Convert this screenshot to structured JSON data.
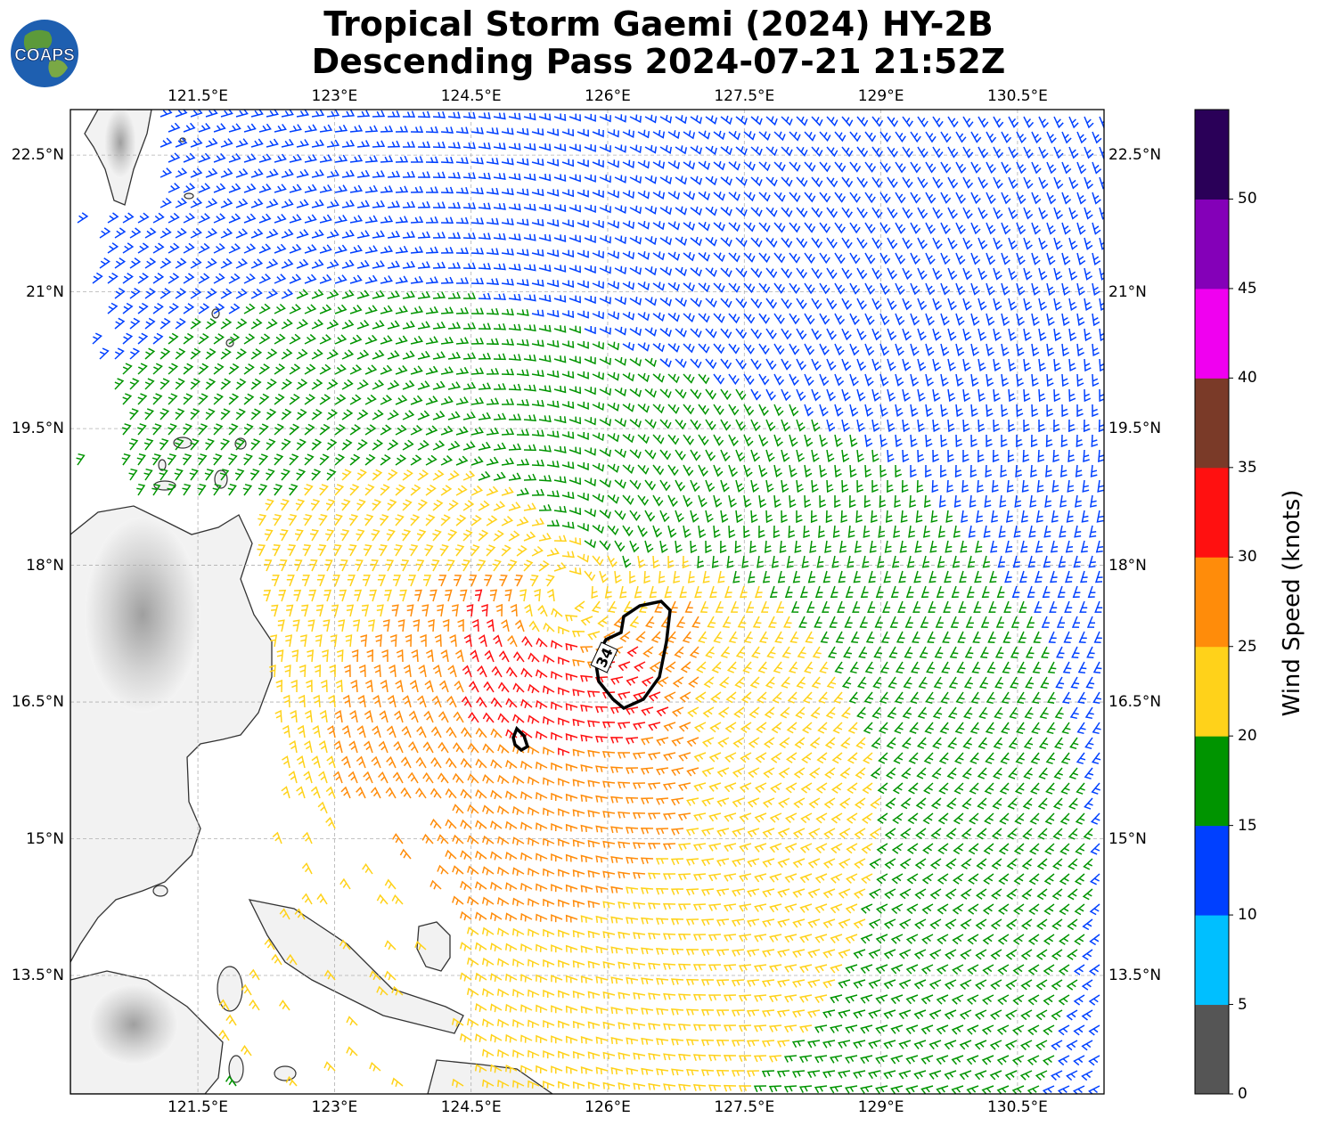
{
  "title": {
    "line1": "Tropical Storm Gaemi (2024) HY-2B",
    "line2": "Descending Pass 2024-07-21 21:52Z"
  },
  "logo": {
    "text": "COAPS",
    "icon": "globe-icon"
  },
  "map": {
    "lon_range": [
      120.1,
      131.45
    ],
    "lat_range": [
      12.2,
      23.0
    ],
    "lon_ticks": [
      "121.5°E",
      "123°E",
      "124.5°E",
      "126°E",
      "127.5°E",
      "129°E",
      "130.5°E"
    ],
    "lat_ticks": [
      "22.5°N",
      "21°N",
      "19.5°N",
      "18°N",
      "16.5°N",
      "15°N",
      "13.5°N"
    ],
    "gridlines": true,
    "storm_center": {
      "lon": 125.6,
      "lat": 17.7
    },
    "contour_label": "34",
    "contour_value": 34
  },
  "colorbar": {
    "title": "Wind Speed (knots)",
    "tick_labels": [
      "0",
      "5",
      "10",
      "15",
      "20",
      "25",
      "30",
      "35",
      "40",
      "45",
      "50"
    ],
    "colors": [
      "#555555",
      "#00bfff",
      "#0040ff",
      "#009400",
      "#ffd21a",
      "#ff8c0a",
      "#ff1010",
      "#7a3a28",
      "#f000f0",
      "#8400b8",
      "#2a0058"
    ]
  }
}
